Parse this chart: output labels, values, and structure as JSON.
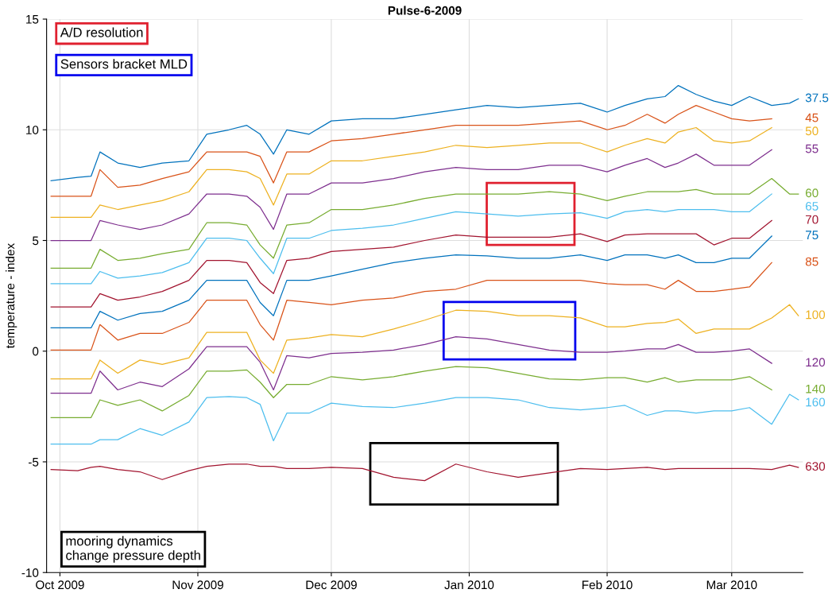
{
  "chart_data": {
    "type": "line",
    "title": "Pulse-6-2009",
    "ylabel": "temperature - index",
    "x": [
      "2009-09-29",
      "2009-10-05",
      "2009-10-08",
      "2009-10-10",
      "2009-10-14",
      "2009-10-19",
      "2009-10-24",
      "2009-10-30",
      "2009-11-03",
      "2009-11-08",
      "2009-11-12",
      "2009-11-15",
      "2009-11-18",
      "2009-11-21",
      "2009-11-26",
      "2009-12-01",
      "2009-12-08",
      "2009-12-15",
      "2009-12-22",
      "2009-12-29",
      "2010-01-05",
      "2010-01-12",
      "2010-01-19",
      "2010-01-26",
      "2010-02-01",
      "2010-02-05",
      "2010-02-10",
      "2010-02-14",
      "2010-02-17",
      "2010-02-21",
      "2010-02-25",
      "2010-03-01",
      "2010-03-05",
      "2010-03-10",
      "2010-03-14",
      "2010-03-16"
    ],
    "series": [
      {
        "name": "37.5",
        "color": "#0072bd",
        "values": [
          7.7,
          7.85,
          7.9,
          9.0,
          8.5,
          8.3,
          8.5,
          8.6,
          9.8,
          10.0,
          10.2,
          9.8,
          8.9,
          10.0,
          9.8,
          10.4,
          10.5,
          10.5,
          10.7,
          10.9,
          11.1,
          11.0,
          11.1,
          11.2,
          10.8,
          11.1,
          11.4,
          11.5,
          12.0,
          11.6,
          11.3,
          11.1,
          11.5,
          11.1,
          11.2,
          11.4
        ]
      },
      {
        "name": "45",
        "color": "#d95319",
        "values": [
          7.0,
          7.0,
          7.0,
          8.2,
          7.4,
          7.5,
          7.8,
          8.1,
          9.0,
          9.0,
          9.0,
          8.8,
          7.6,
          9.0,
          9.0,
          9.5,
          9.6,
          9.8,
          10.0,
          10.2,
          10.2,
          10.2,
          10.3,
          10.4,
          10.0,
          10.2,
          10.7,
          10.3,
          10.7,
          11.1,
          10.8,
          10.5,
          10.4,
          10.5,
          null,
          null
        ]
      },
      {
        "name": "50",
        "color": "#edb120",
        "values": [
          6.05,
          6.05,
          6.05,
          6.6,
          6.4,
          6.6,
          6.8,
          7.2,
          8.2,
          8.2,
          8.1,
          7.8,
          6.6,
          8.0,
          8.0,
          8.6,
          8.6,
          8.8,
          9.0,
          9.3,
          9.2,
          9.3,
          9.4,
          9.4,
          9.0,
          9.3,
          9.6,
          9.4,
          9.9,
          10.1,
          9.5,
          9.4,
          9.5,
          10.1,
          null,
          null
        ]
      },
      {
        "name": "55",
        "color": "#7e2f8e",
        "values": [
          5.0,
          5.0,
          5.0,
          5.9,
          5.7,
          5.5,
          5.7,
          6.2,
          7.1,
          7.1,
          7.0,
          6.5,
          5.5,
          7.1,
          7.1,
          7.6,
          7.6,
          7.8,
          8.1,
          8.3,
          8.2,
          8.2,
          8.4,
          8.4,
          8.1,
          8.4,
          8.7,
          8.3,
          8.5,
          8.9,
          8.4,
          8.4,
          8.4,
          9.1,
          null,
          null
        ]
      },
      {
        "name": "60",
        "color": "#77ac30",
        "values": [
          3.75,
          3.75,
          3.75,
          4.6,
          4.1,
          4.2,
          4.4,
          4.6,
          5.8,
          5.8,
          5.7,
          4.8,
          4.2,
          5.7,
          5.8,
          6.4,
          6.4,
          6.6,
          6.9,
          7.1,
          7.1,
          7.1,
          7.2,
          7.1,
          6.8,
          7.0,
          7.2,
          7.2,
          7.2,
          7.3,
          7.1,
          7.1,
          7.1,
          7.8,
          7.1,
          7.1
        ]
      },
      {
        "name": "65",
        "color": "#4dbeee",
        "values": [
          3.05,
          3.05,
          3.05,
          3.6,
          3.3,
          3.4,
          3.55,
          4.0,
          5.1,
          5.1,
          5.0,
          4.2,
          3.5,
          5.1,
          5.1,
          5.45,
          5.55,
          5.7,
          6.0,
          6.3,
          6.2,
          6.1,
          6.2,
          6.25,
          6.0,
          6.3,
          6.4,
          6.3,
          6.4,
          6.4,
          6.4,
          6.3,
          6.3,
          7.1,
          null,
          null
        ]
      },
      {
        "name": "70",
        "color": "#a2142f",
        "values": [
          2.0,
          2.0,
          2.0,
          2.6,
          2.3,
          2.45,
          2.7,
          3.2,
          4.1,
          4.1,
          4.0,
          3.1,
          2.6,
          4.1,
          4.2,
          4.5,
          4.6,
          4.7,
          5.0,
          5.25,
          5.15,
          5.15,
          5.15,
          5.3,
          4.95,
          5.25,
          5.3,
          5.3,
          5.3,
          5.3,
          4.8,
          5.1,
          5.1,
          5.9,
          null,
          null
        ]
      },
      {
        "name": "75",
        "color": "#0072bd",
        "values": [
          1.05,
          1.05,
          1.05,
          1.8,
          1.4,
          1.7,
          1.8,
          2.3,
          3.2,
          3.2,
          3.2,
          2.2,
          1.6,
          3.2,
          3.2,
          3.4,
          3.7,
          4.0,
          4.2,
          4.35,
          4.3,
          4.2,
          4.2,
          4.35,
          4.1,
          4.35,
          4.35,
          4.2,
          4.35,
          4.0,
          4.0,
          4.2,
          4.2,
          5.2,
          null,
          null
        ]
      },
      {
        "name": "85",
        "color": "#d95319",
        "values": [
          0.05,
          0.05,
          0.05,
          1.2,
          0.5,
          0.8,
          0.8,
          1.3,
          2.3,
          2.3,
          2.3,
          1.2,
          0.5,
          2.3,
          2.2,
          2.1,
          2.3,
          2.4,
          2.7,
          2.8,
          3.2,
          3.2,
          3.2,
          3.2,
          3.05,
          3.0,
          3.0,
          2.8,
          3.2,
          2.7,
          2.7,
          2.8,
          2.9,
          4.0,
          null,
          null
        ]
      },
      {
        "name": "100",
        "color": "#edb120",
        "values": [
          -1.25,
          -1.25,
          -1.25,
          -0.4,
          -1.0,
          -0.4,
          -0.6,
          -0.3,
          0.85,
          0.85,
          0.85,
          -0.4,
          -1.0,
          0.5,
          0.6,
          0.75,
          0.65,
          1.0,
          1.4,
          1.85,
          1.8,
          1.6,
          1.6,
          1.5,
          1.1,
          1.1,
          1.25,
          1.3,
          1.45,
          0.8,
          1.0,
          1.0,
          1.0,
          1.5,
          2.1,
          1.6
        ]
      },
      {
        "name": "120",
        "color": "#7e2f8e",
        "values": [
          -1.9,
          -1.9,
          -1.9,
          -0.9,
          -1.75,
          -1.4,
          -1.6,
          -0.8,
          0.2,
          0.2,
          0.2,
          -0.5,
          -1.75,
          -0.2,
          -0.3,
          -0.1,
          -0.05,
          0.05,
          0.3,
          0.65,
          0.55,
          0.3,
          0.05,
          -0.05,
          -0.05,
          0.0,
          0.1,
          0.1,
          0.3,
          -0.05,
          -0.05,
          0.0,
          0.1,
          -0.55,
          null,
          null
        ]
      },
      {
        "name": "140",
        "color": "#77ac30",
        "values": [
          -3.0,
          -3.0,
          -3.0,
          -2.2,
          -2.45,
          -2.2,
          -2.7,
          -2.0,
          -0.9,
          -0.9,
          -0.85,
          -1.4,
          -2.1,
          -1.5,
          -1.5,
          -1.15,
          -1.3,
          -1.15,
          -0.9,
          -0.7,
          -0.75,
          -1.0,
          -1.25,
          -1.3,
          -1.2,
          -1.2,
          -1.4,
          -1.2,
          -1.4,
          -1.3,
          -1.3,
          -1.3,
          -1.15,
          -1.75,
          null,
          null
        ]
      },
      {
        "name": "160",
        "color": "#4dbeee",
        "values": [
          -4.2,
          -4.2,
          -4.2,
          -4.0,
          -4.0,
          -3.5,
          -3.8,
          -3.2,
          -2.1,
          -2.05,
          -2.1,
          -2.4,
          -4.05,
          -2.8,
          -2.8,
          -2.35,
          -2.5,
          -2.55,
          -2.35,
          -2.1,
          -2.1,
          -2.2,
          -2.55,
          -2.65,
          -2.55,
          -2.45,
          -2.9,
          -2.7,
          -2.7,
          -2.8,
          -2.7,
          -2.7,
          -2.55,
          -3.3,
          -1.95,
          -2.2
        ]
      },
      {
        "name": "630",
        "color": "#a2142f",
        "values": [
          -5.35,
          -5.4,
          -5.25,
          -5.2,
          -5.35,
          -5.45,
          -5.8,
          -5.4,
          -5.2,
          -5.1,
          -5.1,
          -5.2,
          -5.2,
          -5.3,
          -5.3,
          -5.25,
          -5.3,
          -5.7,
          -5.85,
          -5.1,
          -5.45,
          -5.7,
          -5.5,
          -5.3,
          -5.35,
          -5.3,
          -5.25,
          -5.35,
          -5.3,
          -5.3,
          -5.3,
          -5.3,
          -5.3,
          -5.35,
          -5.15,
          -5.25
        ]
      }
    ],
    "xlim": [
      "2009-09-28",
      "2010-03-17"
    ],
    "xticks": [
      {
        "value": "2009-10-01",
        "label": "Oct 2009"
      },
      {
        "value": "2009-11-01",
        "label": "Nov 2009"
      },
      {
        "value": "2009-12-01",
        "label": "Dec 2009"
      },
      {
        "value": "2010-01-01",
        "label": "Jan 2010"
      },
      {
        "value": "2010-02-01",
        "label": "Feb 2010"
      },
      {
        "value": "2010-03-01",
        "label": "Mar 2010"
      }
    ],
    "ylim": [
      -10,
      15
    ],
    "yticks": [
      -10,
      -5,
      0,
      5,
      10,
      15
    ],
    "grid": true,
    "marker": "none",
    "line_style": "solid",
    "annotations": [
      "A/D resolution",
      "Sensors bracket MLD",
      "mooring dynamics\nchange pressure depth"
    ]
  }
}
